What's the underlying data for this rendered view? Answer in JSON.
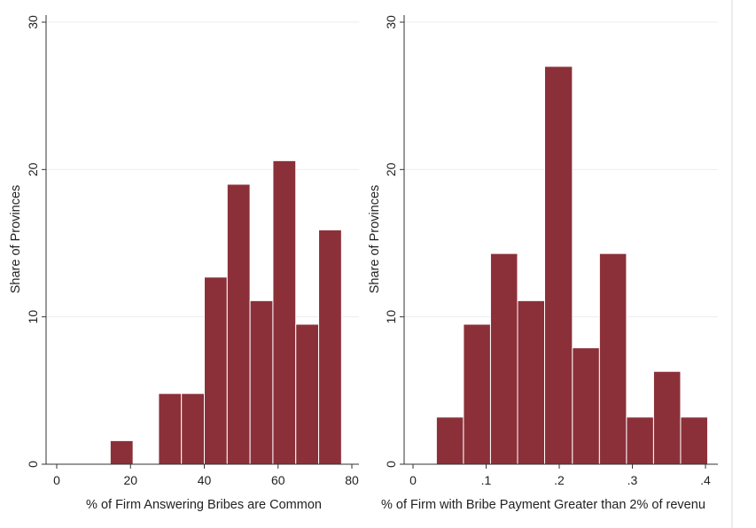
{
  "chart_data": [
    {
      "type": "bar",
      "histogram": true,
      "title": "",
      "xlabel": "% of Firm Answering Bribes are Common",
      "ylabel": "Share of Provinces",
      "xlim": [
        -3,
        82
      ],
      "ylim": [
        0,
        30
      ],
      "xticks": [
        0,
        20,
        40,
        60,
        80
      ],
      "xtick_labels": [
        "0",
        "20",
        "40",
        "60",
        "80"
      ],
      "yticks": [
        0,
        10,
        20,
        30
      ],
      "ytick_labels": [
        "0",
        "10",
        "20",
        "30"
      ],
      "grid": true,
      "bar_color": "#8b3039",
      "bins": [
        {
          "x0": 14.5,
          "x1": 20.7,
          "value": 1.6
        },
        {
          "x0": 27.6,
          "x1": 33.8,
          "value": 4.8
        },
        {
          "x0": 33.8,
          "x1": 40.0,
          "value": 4.8
        },
        {
          "x0": 40.0,
          "x1": 46.2,
          "value": 12.7
        },
        {
          "x0": 46.2,
          "x1": 52.4,
          "value": 19.0
        },
        {
          "x0": 52.4,
          "x1": 58.6,
          "value": 11.1
        },
        {
          "x0": 58.6,
          "x1": 64.8,
          "value": 20.6
        },
        {
          "x0": 64.8,
          "x1": 71.0,
          "value": 9.5
        },
        {
          "x0": 71.0,
          "x1": 77.2,
          "value": 15.9
        }
      ]
    },
    {
      "type": "bar",
      "histogram": true,
      "title": "",
      "xlabel": "% of Firm with Bribe Payment Greater than 2% of revenu",
      "ylabel": "Share of Provinces",
      "xlim": [
        -0.02,
        0.42
      ],
      "ylim": [
        0,
        30
      ],
      "xticks": [
        0,
        0.1,
        0.2,
        0.3,
        0.4
      ],
      "xtick_labels": [
        "0",
        ".1",
        ".2",
        ".3",
        ".4"
      ],
      "yticks": [
        0,
        10,
        20,
        30
      ],
      "ytick_labels": [
        "0",
        "10",
        "20",
        "30"
      ],
      "grid": true,
      "bar_color": "#8b3039",
      "bins": [
        {
          "x0": 0.032,
          "x1": 0.069,
          "value": 3.2
        },
        {
          "x0": 0.069,
          "x1": 0.106,
          "value": 9.5
        },
        {
          "x0": 0.106,
          "x1": 0.143,
          "value": 14.3
        },
        {
          "x0": 0.143,
          "x1": 0.18,
          "value": 11.1
        },
        {
          "x0": 0.18,
          "x1": 0.218,
          "value": 27.0
        },
        {
          "x0": 0.218,
          "x1": 0.255,
          "value": 7.9
        },
        {
          "x0": 0.255,
          "x1": 0.292,
          "value": 14.3
        },
        {
          "x0": 0.292,
          "x1": 0.329,
          "value": 3.2
        },
        {
          "x0": 0.329,
          "x1": 0.366,
          "value": 6.3
        },
        {
          "x0": 0.366,
          "x1": 0.403,
          "value": 3.2
        }
      ]
    }
  ]
}
